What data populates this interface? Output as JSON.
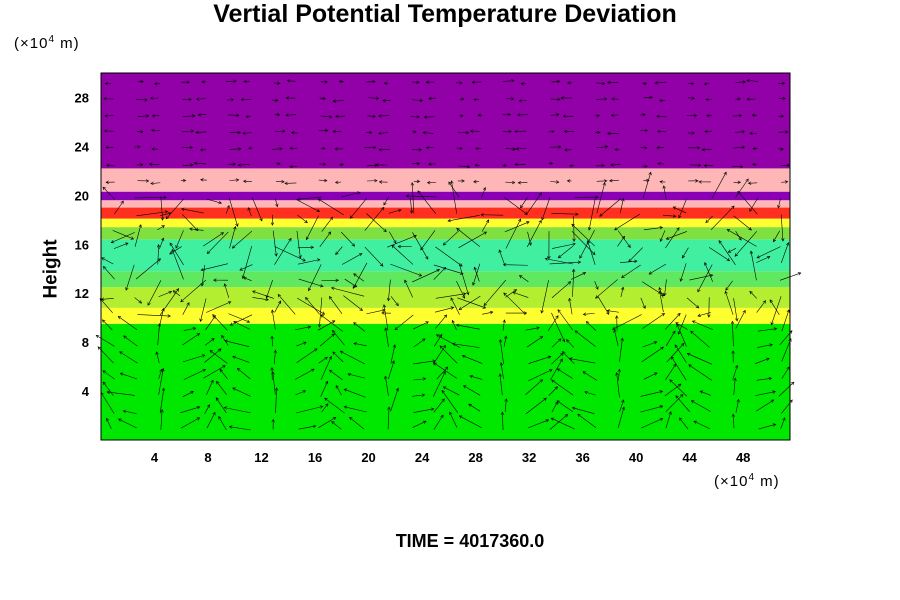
{
  "chart_data": {
    "type": "heatmap",
    "title": "Vertial Potential Temperature Deviation",
    "xlabel": "",
    "ylabel": "Height",
    "x_unit": {
      "prefix": "(×10",
      "exp": "4",
      "suffix": " m)"
    },
    "y_unit": {
      "prefix": "(×10",
      "exp": "4",
      "suffix": " m)"
    },
    "xlim": [
      0,
      51.5
    ],
    "ylim": [
      0,
      30
    ],
    "x_ticks": [
      "4",
      "8",
      "12",
      "16",
      "20",
      "24",
      "28",
      "32",
      "36",
      "40",
      "44",
      "48"
    ],
    "y_ticks": [
      "4",
      "8",
      "12",
      "16",
      "20",
      "24",
      "28"
    ],
    "layers": [
      {
        "y": [
          0,
          9.5
        ],
        "color": "#00e800"
      },
      {
        "y": [
          9.5,
          10.8
        ],
        "color": "#ffff30"
      },
      {
        "y": [
          10.8,
          12.5
        ],
        "color": "#b4ee30"
      },
      {
        "y": [
          12.5,
          13.8
        ],
        "color": "#60e860"
      },
      {
        "y": [
          13.8,
          16.4
        ],
        "color": "#40f0a0"
      },
      {
        "y": [
          16.4,
          17.4
        ],
        "color": "#80e040"
      },
      {
        "y": [
          17.4,
          18.1
        ],
        "color": "#ffff30"
      },
      {
        "y": [
          18.1,
          19.0
        ],
        "color": "#ff3020"
      },
      {
        "y": [
          19.0,
          19.6
        ],
        "color": "#ffb6b6"
      },
      {
        "y": [
          19.6,
          20.3
        ],
        "color": "#8a00b4"
      },
      {
        "y": [
          20.3,
          22.2
        ],
        "color": "#ffb6b6"
      },
      {
        "y": [
          22.2,
          30
        ],
        "color": "#9200a8"
      }
    ],
    "grid": false
  },
  "footer": {
    "time_label": "TIME = 4017360.0"
  }
}
